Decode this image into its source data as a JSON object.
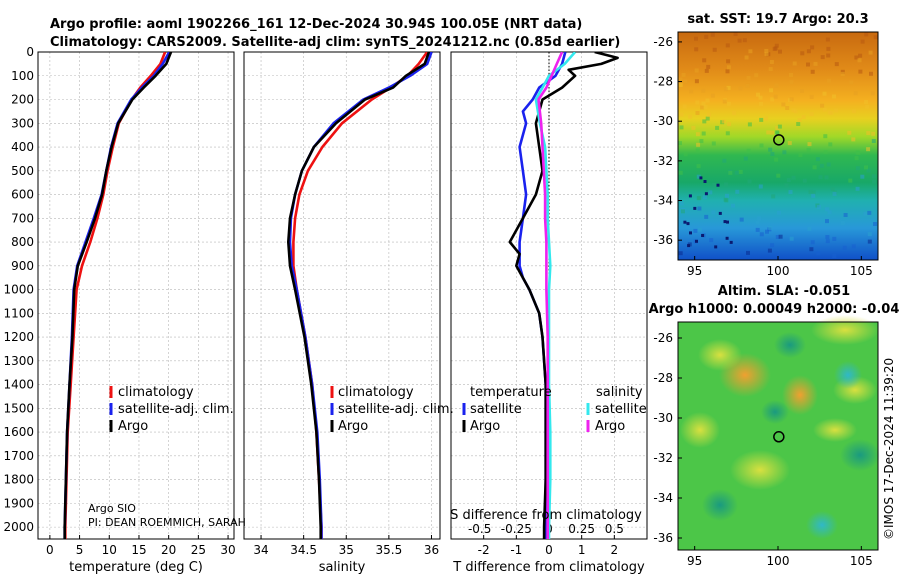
{
  "header": {
    "line1": "Argo profile: aoml 1902266_161 12-Dec-2024 30.94S 100.05E (NRT data)",
    "line2": "Climatology: CARS2009. Satellite-adj clim: synTS_20241212.nc (0.85d earlier)"
  },
  "colors": {
    "climatology": "#ee1111",
    "satellite": "#1a22ee",
    "argo": "#000000",
    "sat_salinity": "#33e8ee",
    "argo_salinity": "#ee22ee"
  },
  "chart_data": [
    {
      "id": "temperature",
      "type": "line",
      "xlabel": "temperature (deg C)",
      "ylabel": "",
      "xlim": [
        -2,
        31
      ],
      "ylim": [
        2050,
        0
      ],
      "xticks": [
        0,
        5,
        10,
        15,
        20,
        25,
        30
      ],
      "yticks": [
        0,
        100,
        200,
        300,
        400,
        500,
        600,
        700,
        800,
        900,
        1000,
        1100,
        1200,
        1300,
        1400,
        1500,
        1600,
        1700,
        1800,
        1900,
        2000
      ],
      "legend": [
        "climatology",
        "satellite-adj. clim.",
        "Argo"
      ],
      "annotations": [
        "Argo SIO",
        "PI: DEAN ROEMMICH, SARAH"
      ],
      "series": [
        {
          "name": "climatology",
          "color": "#ee1111",
          "depth": [
            0,
            50,
            100,
            150,
            200,
            300,
            400,
            500,
            600,
            700,
            800,
            900,
            1000,
            1200,
            1400,
            1600,
            1800,
            2000,
            2050
          ],
          "values": [
            19.4,
            18.6,
            17.0,
            15.2,
            13.8,
            11.6,
            10.6,
            9.7,
            9.0,
            8.0,
            6.8,
            5.4,
            4.5,
            4.0,
            3.5,
            3.0,
            2.8,
            2.6,
            2.6
          ]
        },
        {
          "name": "satellite-adj. clim.",
          "color": "#1a22ee",
          "depth": [
            0,
            50,
            100,
            150,
            200,
            300,
            400,
            500,
            600,
            700,
            800,
            900,
            1000,
            1200,
            1400,
            1600,
            1800,
            2000,
            2050
          ],
          "values": [
            20.1,
            19.0,
            17.5,
            15.5,
            13.7,
            11.4,
            10.3,
            9.5,
            8.7,
            7.4,
            6.0,
            4.6,
            4.0,
            3.7,
            3.3,
            2.9,
            2.7,
            2.5,
            2.5
          ]
        },
        {
          "name": "Argo",
          "color": "#000000",
          "depth": [
            0,
            50,
            100,
            150,
            200,
            300,
            400,
            500,
            600,
            700,
            800,
            900,
            1000,
            1200,
            1400,
            1600,
            1800,
            2000,
            2050
          ],
          "values": [
            20.4,
            19.6,
            17.8,
            15.8,
            13.9,
            11.5,
            10.4,
            9.5,
            8.8,
            7.6,
            6.2,
            4.7,
            4.1,
            3.8,
            3.3,
            2.9,
            2.7,
            2.5,
            2.5
          ]
        }
      ]
    },
    {
      "id": "salinity",
      "type": "line",
      "xlabel": "salinity",
      "xlim": [
        33.8,
        36.1
      ],
      "ylim": [
        2050,
        0
      ],
      "xticks": [
        34,
        34.5,
        35,
        35.5,
        36
      ],
      "xticklabels": [
        "34",
        "34.5",
        "35",
        "35.5",
        "36"
      ],
      "legend": [
        "climatology",
        "satellite-adj. clim.",
        "Argo"
      ],
      "series": [
        {
          "name": "climatology",
          "color": "#ee1111",
          "depth": [
            0,
            50,
            100,
            150,
            200,
            300,
            400,
            500,
            600,
            700,
            800,
            900,
            1000,
            1200,
            1400,
            1600,
            1800,
            2000,
            2050
          ],
          "values": [
            35.95,
            35.85,
            35.72,
            35.52,
            35.3,
            34.95,
            34.72,
            34.55,
            34.45,
            34.4,
            34.38,
            34.38,
            34.42,
            34.52,
            34.6,
            34.65,
            34.68,
            34.71,
            34.71
          ]
        },
        {
          "name": "satellite-adj. clim.",
          "color": "#1a22ee",
          "depth": [
            0,
            50,
            100,
            150,
            200,
            300,
            400,
            500,
            600,
            700,
            800,
            900,
            1000,
            1200,
            1400,
            1600,
            1800,
            2000,
            2050
          ],
          "values": [
            36.0,
            35.95,
            35.75,
            35.5,
            35.2,
            34.85,
            34.62,
            34.48,
            34.4,
            34.35,
            34.34,
            34.36,
            34.42,
            34.52,
            34.6,
            34.66,
            34.69,
            34.71,
            34.71
          ]
        },
        {
          "name": "Argo",
          "color": "#000000",
          "depth": [
            0,
            50,
            100,
            150,
            200,
            300,
            400,
            500,
            600,
            700,
            800,
            900,
            1000,
            1200,
            1400,
            1600,
            1800,
            2000,
            2050
          ],
          "values": [
            35.97,
            35.92,
            35.7,
            35.55,
            35.22,
            34.88,
            34.62,
            34.48,
            34.4,
            34.34,
            34.32,
            34.34,
            34.4,
            34.51,
            34.59,
            34.65,
            34.68,
            34.7,
            34.7
          ]
        }
      ]
    },
    {
      "id": "difference",
      "type": "line",
      "xlabel": "T difference from climatology",
      "title_top": "S difference from climatology",
      "xlim": [
        -3,
        3
      ],
      "ylim": [
        2050,
        0
      ],
      "xticks": [
        -2,
        -1,
        0,
        1,
        2
      ],
      "xticklabels": [
        "-2",
        "-1",
        "0",
        "1",
        "2"
      ],
      "sticklabels": [
        "-0.5",
        "-0.25",
        "0",
        "0.25",
        "0.5"
      ],
      "legend_temperature_title": "temperature",
      "legend_salinity_title": "salinity",
      "legend": [
        "satellite",
        "Argo",
        "satellite",
        "Argo"
      ],
      "series": [
        {
          "name": "T satellite",
          "color": "#1a22ee",
          "depth": [
            0,
            50,
            100,
            150,
            200,
            250,
            300,
            400,
            500,
            600,
            700,
            800,
            850,
            900,
            950,
            1000,
            1100,
            1200,
            1400,
            1600,
            1800,
            2000,
            2050
          ],
          "values": [
            0.5,
            0.4,
            0.2,
            -0.3,
            -0.5,
            -0.8,
            -0.7,
            -0.9,
            -0.8,
            -0.7,
            -0.8,
            -0.9,
            -0.9,
            -0.9,
            -0.8,
            -0.6,
            -0.3,
            -0.2,
            -0.1,
            -0.1,
            -0.1,
            -0.1,
            -0.1
          ]
        },
        {
          "name": "T Argo",
          "color": "#000000",
          "depth": [
            0,
            25,
            50,
            75,
            100,
            150,
            200,
            250,
            300,
            400,
            500,
            600,
            700,
            750,
            800,
            850,
            900,
            1000,
            1100,
            1200,
            1400,
            1600,
            1800,
            2000,
            2050
          ],
          "values": [
            1.4,
            2.1,
            1.6,
            0.6,
            0.8,
            0.4,
            -0.2,
            -0.3,
            -0.4,
            -0.3,
            -0.2,
            -0.4,
            -0.8,
            -1.0,
            -1.2,
            -0.9,
            -1.0,
            -0.6,
            -0.3,
            -0.2,
            -0.1,
            -0.1,
            -0.1,
            -0.15,
            -0.15
          ]
        },
        {
          "name": "S satellite",
          "color": "#33e8ee",
          "depth": [
            0,
            50,
            100,
            150,
            200,
            300,
            400,
            500,
            600,
            700,
            800,
            900,
            1000,
            1200,
            1400,
            1600,
            1800,
            2000,
            2050
          ],
          "values": [
            0.2,
            0.12,
            0.0,
            -0.05,
            -0.1,
            -0.07,
            -0.03,
            -0.02,
            -0.01,
            -0.01,
            0.0,
            0.01,
            0.0,
            0.0,
            0.0,
            0.01,
            0.01,
            0.0,
            0.0
          ]
        },
        {
          "name": "S Argo",
          "color": "#ee22ee",
          "depth": [
            0,
            50,
            100,
            150,
            200,
            300,
            400,
            500,
            600,
            700,
            800,
            900,
            1000,
            1200,
            1400,
            1600,
            1800,
            2000,
            2050
          ],
          "values": [
            0.1,
            0.06,
            0.02,
            -0.02,
            -0.08,
            -0.06,
            -0.05,
            -0.04,
            -0.03,
            -0.03,
            -0.02,
            -0.02,
            -0.02,
            -0.01,
            -0.01,
            -0.01,
            -0.01,
            -0.01,
            -0.01
          ]
        }
      ]
    },
    {
      "id": "sst_map",
      "type": "heatmap",
      "title": "sat. SST: 19.7 Argo: 20.3",
      "xlim": [
        94,
        106
      ],
      "ylim": [
        -37,
        -25.5
      ],
      "xticks": [
        95,
        100,
        105
      ],
      "yticks": [
        -26,
        -28,
        -30,
        -32,
        -34,
        -36
      ],
      "float_position": {
        "lon": 100.05,
        "lat": -30.94
      }
    },
    {
      "id": "sla_map",
      "type": "heatmap",
      "title_line1": "Altim. SLA: -0.051",
      "title_line2": "Argo h1000: 0.00049 h2000: -0.04",
      "xlim": [
        94,
        106
      ],
      "ylim": [
        -36.6,
        -25.2
      ],
      "xticks": [
        95,
        100,
        105
      ],
      "yticks": [
        -26,
        -28,
        -30,
        -32,
        -34,
        -36
      ],
      "float_position": {
        "lon": 100.05,
        "lat": -30.94
      }
    }
  ],
  "footer": {
    "stamp": "©IMOS 17-Dec-2024 11:39:20"
  }
}
